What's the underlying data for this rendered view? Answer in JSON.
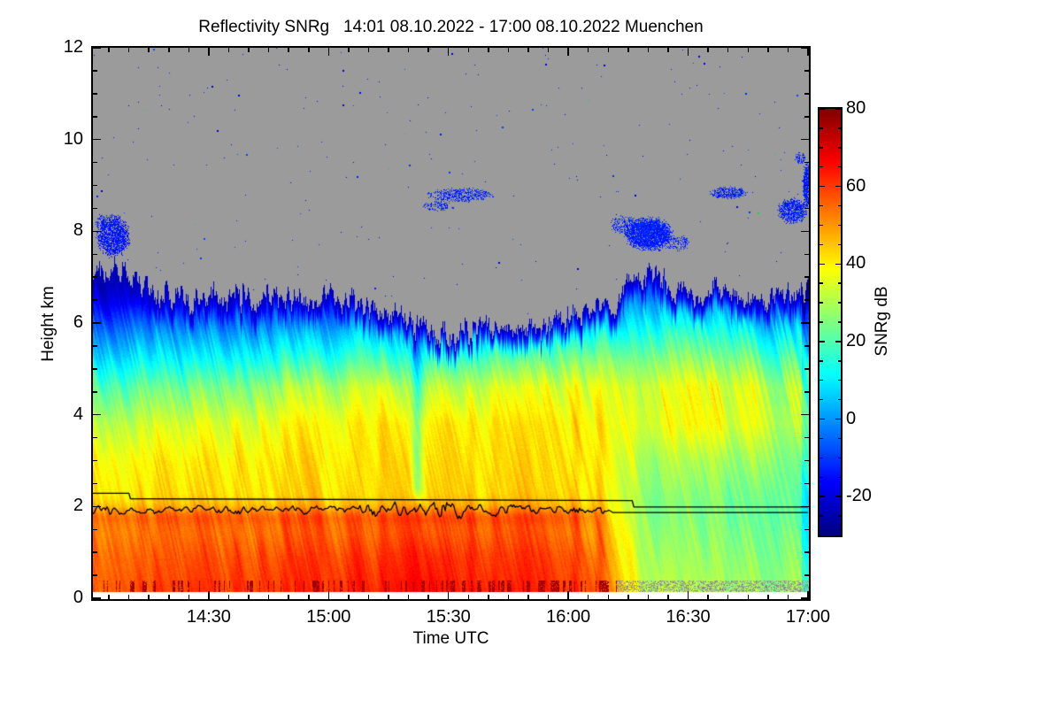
{
  "chart_data": {
    "type": "heatmap",
    "title": "Reflectivity SNRg   14:01 08.10.2022 - 17:00 08.10.2022 Muenchen",
    "xlabel": "Time UTC",
    "ylabel": "Height km",
    "colorbar_label": "SNRg dB",
    "time_start": "14:01",
    "time_end": "17:00",
    "date": "08.10.2022",
    "station": "Muenchen",
    "x_minutes_span": 179,
    "x_start_abs_min": 841,
    "x_ticks": [
      {
        "label": "14:30",
        "min": 29
      },
      {
        "label": "15:00",
        "min": 59
      },
      {
        "label": "15:30",
        "min": 89
      },
      {
        "label": "16:00",
        "min": 119
      },
      {
        "label": "16:30",
        "min": 149
      },
      {
        "label": "17:00",
        "min": 179
      }
    ],
    "x_minor_step_min": 5,
    "y_km_range": [
      0,
      12
    ],
    "y_ticks": [
      0,
      2,
      4,
      6,
      8,
      10,
      12
    ],
    "y_minor_step_km": 0.5,
    "colorbar": {
      "range_db": [
        -30,
        80
      ],
      "ticks": [
        -20,
        0,
        20,
        40,
        60,
        80
      ],
      "minor_step_db": 5,
      "colormap": "jet"
    },
    "nodata_color": "#9b9b9b",
    "lowest_gate_km": 0.148,
    "cloud_top_km": [
      [
        0,
        7.05
      ],
      [
        5,
        7.15
      ],
      [
        10,
        6.95
      ],
      [
        15,
        6.75
      ],
      [
        20,
        6.62
      ],
      [
        28,
        6.55
      ],
      [
        35,
        6.6
      ],
      [
        45,
        6.55
      ],
      [
        55,
        6.45
      ],
      [
        62,
        6.55
      ],
      [
        70,
        6.3
      ],
      [
        78,
        6.15
      ],
      [
        82,
        5.92
      ],
      [
        86,
        5.78
      ],
      [
        92,
        5.75
      ],
      [
        97,
        6.05
      ],
      [
        102,
        5.82
      ],
      [
        108,
        5.95
      ],
      [
        113,
        6.05
      ],
      [
        118,
        6.0
      ],
      [
        124,
        6.25
      ],
      [
        130,
        6.35
      ],
      [
        135,
        6.85
      ],
      [
        140,
        7.0
      ],
      [
        144,
        6.85
      ],
      [
        148,
        6.58
      ],
      [
        152,
        6.65
      ],
      [
        158,
        6.72
      ],
      [
        163,
        6.55
      ],
      [
        168,
        6.6
      ],
      [
        173,
        6.68
      ],
      [
        179,
        6.72
      ]
    ],
    "snr_grid": {
      "times_min": [
        0,
        20,
        40,
        60,
        75,
        90,
        105,
        118,
        127,
        133,
        139,
        152,
        166,
        179
      ],
      "heights_km": [
        0,
        0.9,
        1.5,
        1.8,
        2.0,
        2.3,
        3.0,
        3.8,
        4.6,
        5.2,
        5.8,
        6.4,
        7.0,
        12
      ],
      "values_db": [
        [
          58,
          56,
          53,
          49,
          46,
          42,
          40,
          33,
          22,
          10,
          -2,
          -16,
          -24,
          -28
        ],
        [
          60,
          57,
          54,
          50,
          46,
          42,
          40,
          34,
          23,
          11,
          0,
          -14,
          -24,
          -28
        ],
        [
          61,
          58,
          54,
          50,
          46,
          42,
          41,
          36,
          26,
          13,
          1,
          -12,
          -24,
          -28
        ],
        [
          63,
          60,
          56,
          51,
          47,
          43,
          42,
          40,
          32,
          18,
          5,
          -10,
          -24,
          -28
        ],
        [
          66,
          62,
          57,
          52,
          47,
          43,
          42,
          40,
          32,
          18,
          5,
          -12,
          -24,
          -28
        ],
        [
          64,
          61,
          56,
          52,
          47,
          43,
          42,
          40,
          30,
          17,
          3,
          -12,
          -24,
          -28
        ],
        [
          63,
          60,
          56,
          51,
          47,
          43,
          42,
          41,
          35,
          22,
          8,
          -6,
          -22,
          -28
        ],
        [
          62,
          59,
          55,
          51,
          47,
          44,
          43,
          42,
          37,
          25,
          12,
          -2,
          -18,
          -28
        ],
        [
          59,
          56,
          52,
          48,
          45,
          42,
          41,
          40,
          36,
          26,
          13,
          0,
          -16,
          -28
        ],
        [
          44,
          40,
          37,
          35,
          34,
          33,
          34,
          37,
          35,
          26,
          14,
          2,
          -14,
          -28
        ],
        [
          31,
          28,
          26,
          25,
          25,
          26,
          29,
          35,
          34,
          25,
          14,
          3,
          -12,
          -28
        ],
        [
          30,
          27,
          25,
          24,
          24,
          25,
          29,
          38,
          37,
          27,
          16,
          4,
          -14,
          -28
        ],
        [
          29,
          26,
          24,
          23,
          23,
          24,
          28,
          35,
          34,
          24,
          12,
          -2,
          -18,
          -28
        ],
        [
          28,
          25,
          23,
          22,
          22,
          23,
          26,
          31,
          30,
          20,
          8,
          -8,
          -22,
          -28
        ]
      ]
    },
    "bright_band": {
      "height_km": 1.78,
      "half_width_km": 0.14,
      "boost_db": 6,
      "end_min": 130
    },
    "weak_streak": {
      "center_min": 81,
      "sigma_min": 0.9,
      "depth_db": 16,
      "h_range_km": [
        2.0,
        6.6
      ]
    },
    "right_edge_dim": {
      "start_min": 177.4,
      "drop_db": 10
    },
    "rain_end_min": 131,
    "lines": {
      "step_line_km": [
        [
          0,
          2.29
        ],
        [
          9,
          2.29
        ],
        [
          9.4,
          2.17
        ],
        [
          135,
          2.13
        ],
        [
          135.4,
          1.99
        ],
        [
          179,
          1.99
        ]
      ],
      "wiggly_line": {
        "mean_km": 1.93,
        "amp_km": 0.09,
        "end_min": 129.5,
        "tail_km": 1.87
      }
    },
    "cloud_patches": [
      [
        5,
        7.9,
        4.5,
        0.5,
        0.75
      ],
      [
        2,
        8.2,
        1.5,
        0.2,
        0.5
      ],
      [
        92,
        8.8,
        9,
        0.17,
        0.5
      ],
      [
        86,
        8.55,
        4,
        0.12,
        0.4
      ],
      [
        139,
        7.95,
        6.5,
        0.4,
        0.92
      ],
      [
        133,
        8.15,
        4,
        0.22,
        0.45
      ],
      [
        146,
        7.75,
        4,
        0.18,
        0.4
      ],
      [
        159,
        8.85,
        5,
        0.15,
        0.65
      ],
      [
        175,
        8.45,
        4,
        0.3,
        0.75
      ],
      [
        178.6,
        9.0,
        1.1,
        0.55,
        0.9
      ],
      [
        177,
        9.6,
        1.5,
        0.15,
        0.5
      ]
    ],
    "noise_dots": {
      "count": 320,
      "seed": 11
    }
  }
}
